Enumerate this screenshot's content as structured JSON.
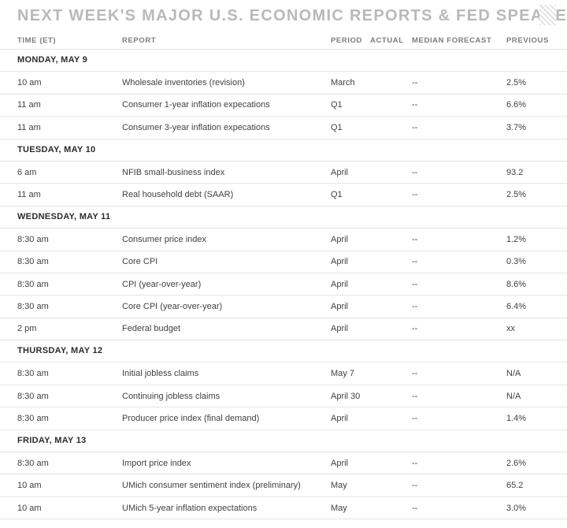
{
  "page": {
    "title": "NEXT WEEK'S MAJOR U.S. ECONOMIC REPORTS & FED SPEAKERS"
  },
  "icons": {
    "hatch_pattern_icon": "diagonal-stripes-decoration"
  },
  "colors": {
    "title_gray": "#b9b9b9",
    "column_header_gray": "#7c7c7c",
    "day_header_dark": "#2b2b2b",
    "body_text": "#414141",
    "divider": "#e5e5e5",
    "background": "#ffffff"
  },
  "table": {
    "columns": [
      "TIME (ET)",
      "REPORT",
      "PERIOD",
      "ACTUAL",
      "MEDIAN FORECAST",
      "PREVIOUS"
    ],
    "column_keys": [
      "time",
      "report",
      "period",
      "actual",
      "median_forecast",
      "previous"
    ],
    "sections": [
      {
        "day": "MONDAY, MAY 9",
        "rows": [
          {
            "time": "10 am",
            "report": "Wholesale inventories (revision)",
            "period": "March",
            "actual": "",
            "median_forecast": "--",
            "previous": "2.5%"
          },
          {
            "time": "11 am",
            "report": "Consumer 1-year inflation expecations",
            "period": "Q1",
            "actual": "",
            "median_forecast": "--",
            "previous": "6.6%"
          },
          {
            "time": "11 am",
            "report": "Consumer 3-year inflation expecations",
            "period": "Q1",
            "actual": "",
            "median_forecast": "--",
            "previous": "3.7%"
          }
        ]
      },
      {
        "day": "TUESDAY, MAY 10",
        "rows": [
          {
            "time": "6 am",
            "report": "NFIB small-business index",
            "period": "April",
            "actual": "",
            "median_forecast": "--",
            "previous": "93.2"
          },
          {
            "time": "11 am",
            "report": "Real household debt (SAAR)",
            "period": "Q1",
            "actual": "",
            "median_forecast": "--",
            "previous": "2.5%"
          }
        ]
      },
      {
        "day": "WEDNESDAY, MAY 11",
        "rows": [
          {
            "time": "8:30 am",
            "report": "Consumer price index",
            "period": "April",
            "actual": "",
            "median_forecast": "--",
            "previous": "1.2%"
          },
          {
            "time": "8:30 am",
            "report": "Core CPI",
            "period": "April",
            "actual": "",
            "median_forecast": "--",
            "previous": "0.3%"
          },
          {
            "time": "8:30 am",
            "report": "CPI (year-over-year)",
            "period": "April",
            "actual": "",
            "median_forecast": "--",
            "previous": "8.6%"
          },
          {
            "time": "8:30 am",
            "report": "Core CPI (year-over-year)",
            "period": "April",
            "actual": "",
            "median_forecast": "--",
            "previous": "6.4%"
          },
          {
            "time": "2 pm",
            "report": "Federal budget",
            "period": "April",
            "actual": "",
            "median_forecast": "--",
            "previous": "xx"
          }
        ]
      },
      {
        "day": "THURSDAY, MAY 12",
        "rows": [
          {
            "time": "8:30 am",
            "report": "Initial jobless claims",
            "period": "May 7",
            "actual": "",
            "median_forecast": "--",
            "previous": "N/A"
          },
          {
            "time": "8:30 am",
            "report": "Continuing jobless claims",
            "period": "April 30",
            "actual": "",
            "median_forecast": "--",
            "previous": "N/A"
          },
          {
            "time": "8:30 am",
            "report": "Producer price index (final demand)",
            "period": "April",
            "actual": "",
            "median_forecast": "--",
            "previous": "1.4%"
          }
        ]
      },
      {
        "day": "FRIDAY, MAY 13",
        "rows": [
          {
            "time": "8:30 am",
            "report": "Import price index",
            "period": "April",
            "actual": "",
            "median_forecast": "--",
            "previous": "2.6%"
          },
          {
            "time": "10 am",
            "report": "UMich consumer sentiment index (preliminary)",
            "period": "May",
            "actual": "",
            "median_forecast": "--",
            "previous": "65.2"
          },
          {
            "time": "10 am",
            "report": "UMich 5-year inflation expectations",
            "period": "May",
            "actual": "",
            "median_forecast": "--",
            "previous": "3.0%"
          }
        ]
      }
    ]
  }
}
